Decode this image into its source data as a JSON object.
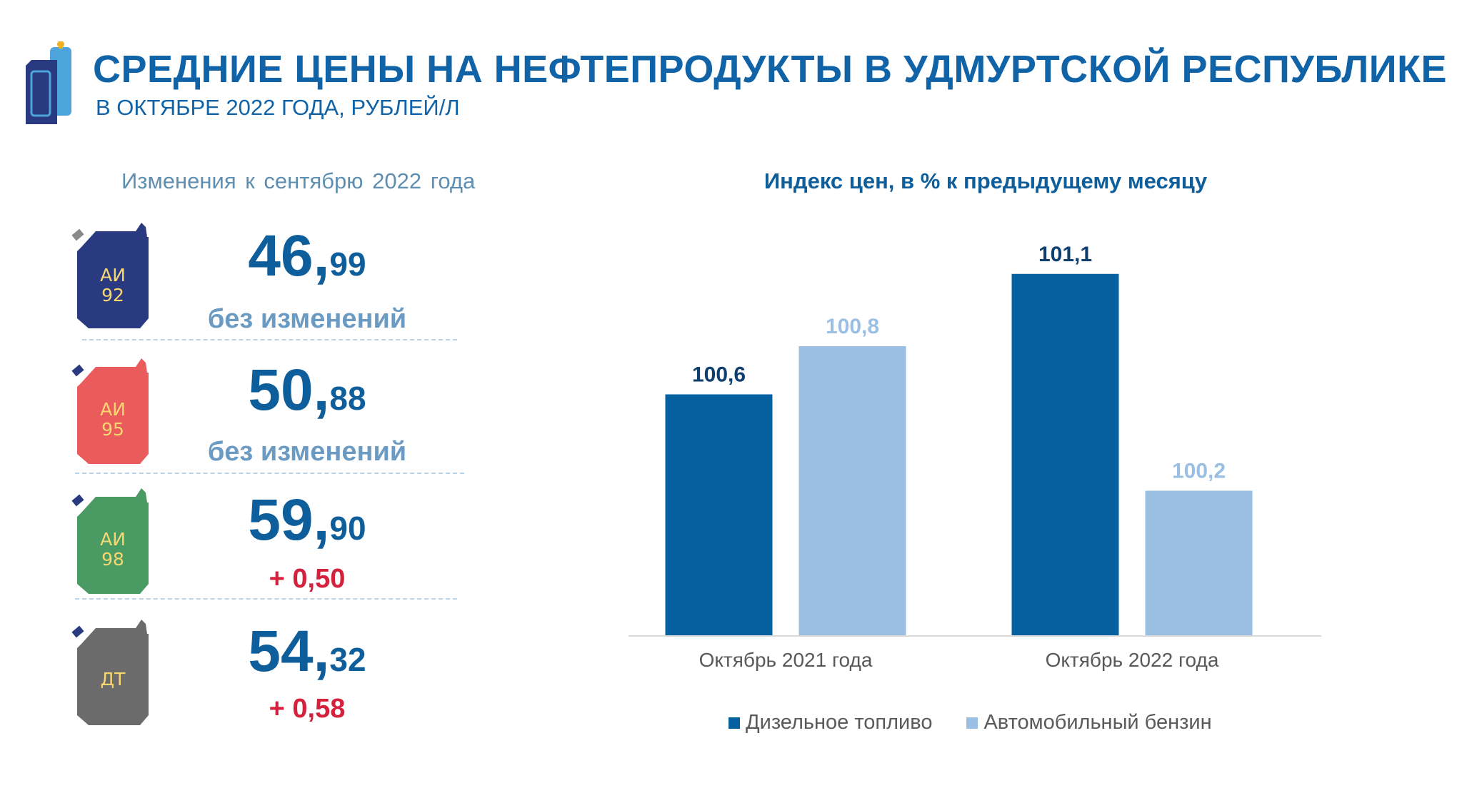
{
  "header": {
    "title": "СРЕДНИЕ ЦЕНЫ НА НЕФТЕПРОДУКТЫ В УДМУРТСКОЙ РЕСПУБЛИКЕ",
    "subtitle": "В ОКТЯБРЕ 2022 ГОДА, РУБЛЕЙ/Л"
  },
  "fuel_prices": {
    "heading": "Изменения  к сентябрю  2022 года",
    "items": [
      {
        "label_line1": "АИ",
        "label_line2": "92",
        "price_int": "46,",
        "price_dec": "99",
        "change": "без изменений",
        "can_color": "#2a3a80",
        "change_color": "#6b9bc2"
      },
      {
        "label_line1": "АИ",
        "label_line2": "95",
        "price_int": "50,",
        "price_dec": "88",
        "change": "без изменений",
        "can_color": "#ea5b5b",
        "change_color": "#6b9bc2"
      },
      {
        "label_line1": "АИ",
        "label_line2": "98",
        "price_int": "59,",
        "price_dec": "90",
        "change": "+ 0,50",
        "can_color": "#4a9a63",
        "change_color": "#d4213d"
      },
      {
        "label_line1": "ДТ",
        "label_line2": "",
        "price_int": "54,",
        "price_dec": "32",
        "change": "+ 0,58",
        "can_color": "#6b6b6b",
        "change_color": "#d4213d"
      }
    ]
  },
  "chart_data": {
    "type": "bar",
    "title": "Индекс цен, в % к предыдущему месяцу",
    "categories": [
      "Октябрь 2021 года",
      "Октябрь 2022 года"
    ],
    "series": [
      {
        "name": "Дизельное топливо",
        "values": [
          100.6,
          101.1
        ],
        "labels": [
          "100,6",
          "101,1"
        ],
        "color": "#0560a0",
        "label_color": "#0f3f6e"
      },
      {
        "name": "Автомобильный бензин",
        "values": [
          100.8,
          100.2
        ],
        "labels": [
          "100,8",
          "100,2"
        ],
        "color": "#9abfe2",
        "label_color": "#9abfe2"
      }
    ],
    "ylim": [
      99.6,
      101.2
    ],
    "grid": false,
    "legend_position": "bottom"
  }
}
